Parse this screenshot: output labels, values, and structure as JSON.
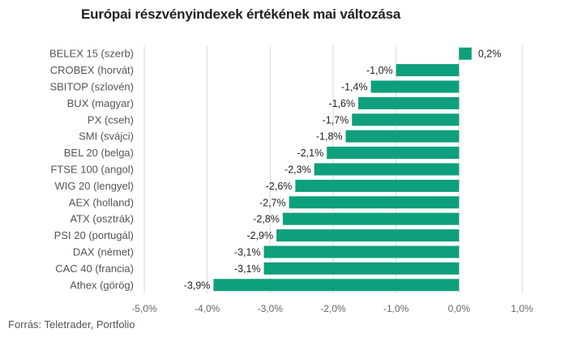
{
  "chart_data": {
    "type": "bar",
    "orientation": "horizontal",
    "title": "Európai részvényindexek értékének mai változása",
    "categories": [
      "BELEX 15 (szerb)",
      "CROBEX (horvát)",
      "SBITOP (szlovén)",
      "BUX (magyar)",
      "PX (cseh)",
      "SMI (svájci)",
      "BEL 20 (belga)",
      "FTSE 100 (angol)",
      "WIG 20 (lengyel)",
      "AEX (holland)",
      "ATX (osztrák)",
      "PSI 20 (portugál)",
      "DAX (német)",
      "CAC 40 (francia)",
      "Athex (görög)"
    ],
    "values": [
      0.2,
      -1.0,
      -1.4,
      -1.6,
      -1.7,
      -1.8,
      -2.1,
      -2.3,
      -2.6,
      -2.7,
      -2.8,
      -2.9,
      -3.1,
      -3.1,
      -3.9
    ],
    "value_labels": [
      "0,2%",
      "-1,0%",
      "-1,4%",
      "-1,6%",
      "-1,7%",
      "-1,8%",
      "-2,1%",
      "-2,3%",
      "-2,6%",
      "-2,7%",
      "-2,8%",
      "-2,9%",
      "-3,1%",
      "-3,1%",
      "-3,9%"
    ],
    "xlim": [
      -5.0,
      1.0
    ],
    "x_ticks": [
      -5.0,
      -4.0,
      -3.0,
      -2.0,
      -1.0,
      0.0,
      1.0
    ],
    "x_tick_labels": [
      "-5,0%",
      "-4,0%",
      "-3,0%",
      "-2,0%",
      "-1,0%",
      "0,0%",
      "1,0%"
    ],
    "xlabel": "",
    "ylabel": "",
    "grid": "vertical",
    "bar_color": "#0e9f7c",
    "source": "Forrás: Teletrader, Portfolio"
  }
}
